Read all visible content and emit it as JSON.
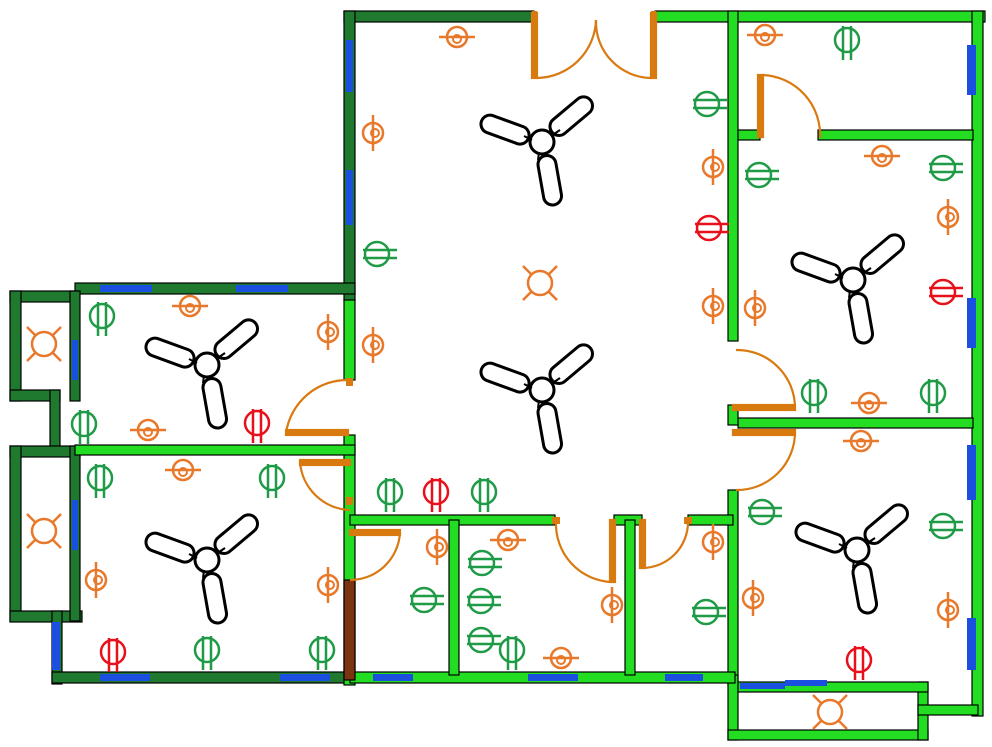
{
  "colors": {
    "background": "#ffffff",
    "wall_dark": "#1f7a2f",
    "wall_light": "#22dd22",
    "wall_outline": "#000000",
    "window": "#1a4fe0",
    "door": "#d97a10",
    "partition_brown": "#7a3510",
    "symbol_orange": "#e8782a",
    "symbol_green": "#1f9a46",
    "symbol_red": "#e8101a",
    "fan": "#000000"
  },
  "symbol_legend": {
    "fan": "ceiling-fan-icon",
    "light": "light-fixture-icon",
    "wall_light": "wall-light-icon",
    "socket_green": "socket-icon",
    "socket_red": "power-socket-icon"
  }
}
